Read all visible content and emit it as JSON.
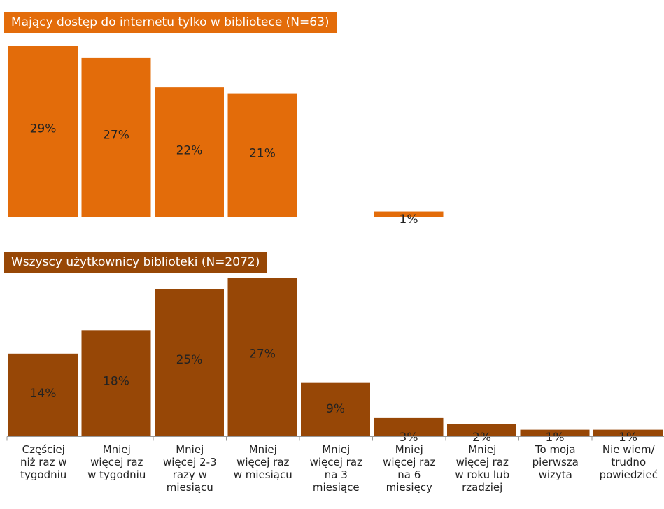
{
  "colors": {
    "top_series": "#E36C0A",
    "bottom_series": "#974706",
    "axis": "#999999",
    "text": "#222222"
  },
  "chart_data": [
    {
      "type": "bar",
      "title": "Mający dostęp do internetu tylko w bibliotece (N=63)",
      "categories": [
        "Częściej niż raz w tygodniu",
        "Mniej więcej raz w tygodniu",
        "Mniej więcej 2-3 razy w miesiącu",
        "Mniej więcej raz w miesiącu",
        "Mniej więcej raz na 3 miesiące",
        "Mniej więcej raz na 6 miesięcy",
        "Mniej więcej raz w roku lub rzadziej",
        "To moja pierwsza wizyta",
        "Nie wiem/ trudno powiedzieć"
      ],
      "values": [
        29,
        27,
        22,
        21,
        null,
        1,
        null,
        null,
        null
      ],
      "labels": [
        "29%",
        "27%",
        "22%",
        "21%",
        "",
        "1%",
        "",
        "",
        ""
      ],
      "ylim": [
        0,
        29
      ]
    },
    {
      "type": "bar",
      "title": "Wszyscy użytkownicy biblioteki (N=2072)",
      "categories": [
        "Częściej niż raz w tygodniu",
        "Mniej więcej raz w tygodniu",
        "Mniej więcej 2-3 razy w miesiącu",
        "Mniej więcej raz w miesiącu",
        "Mniej więcej raz na 3 miesiące",
        "Mniej więcej raz na 6 miesięcy",
        "Mniej więcej raz w roku lub rzadziej",
        "To moja pierwsza wizyta",
        "Nie wiem/ trudno powiedzieć"
      ],
      "values": [
        14,
        18,
        25,
        27,
        9,
        3,
        2,
        1,
        1
      ],
      "labels": [
        "14%",
        "18%",
        "25%",
        "27%",
        "9%",
        "3%",
        "2%",
        "1%",
        "1%"
      ],
      "ylim": [
        0,
        27
      ]
    }
  ],
  "x_axis_labels": [
    [
      "Częściej",
      "niż raz w",
      "tygodniu"
    ],
    [
      "Mniej",
      "więcej raz",
      "w tygodniu"
    ],
    [
      "Mniej",
      "więcej 2-3",
      "razy w",
      "miesiącu"
    ],
    [
      "Mniej",
      "więcej raz",
      "w miesiącu"
    ],
    [
      "Mniej",
      "więcej raz",
      "na 3",
      "miesiące"
    ],
    [
      "Mniej",
      "więcej raz",
      "na 6",
      "miesięcy"
    ],
    [
      "Mniej",
      "więcej raz",
      "w roku lub",
      "rzadziej"
    ],
    [
      "To moja",
      "pierwsza",
      "wizyta"
    ],
    [
      "Nie wiem/",
      "trudno",
      "powiedzieć"
    ]
  ]
}
